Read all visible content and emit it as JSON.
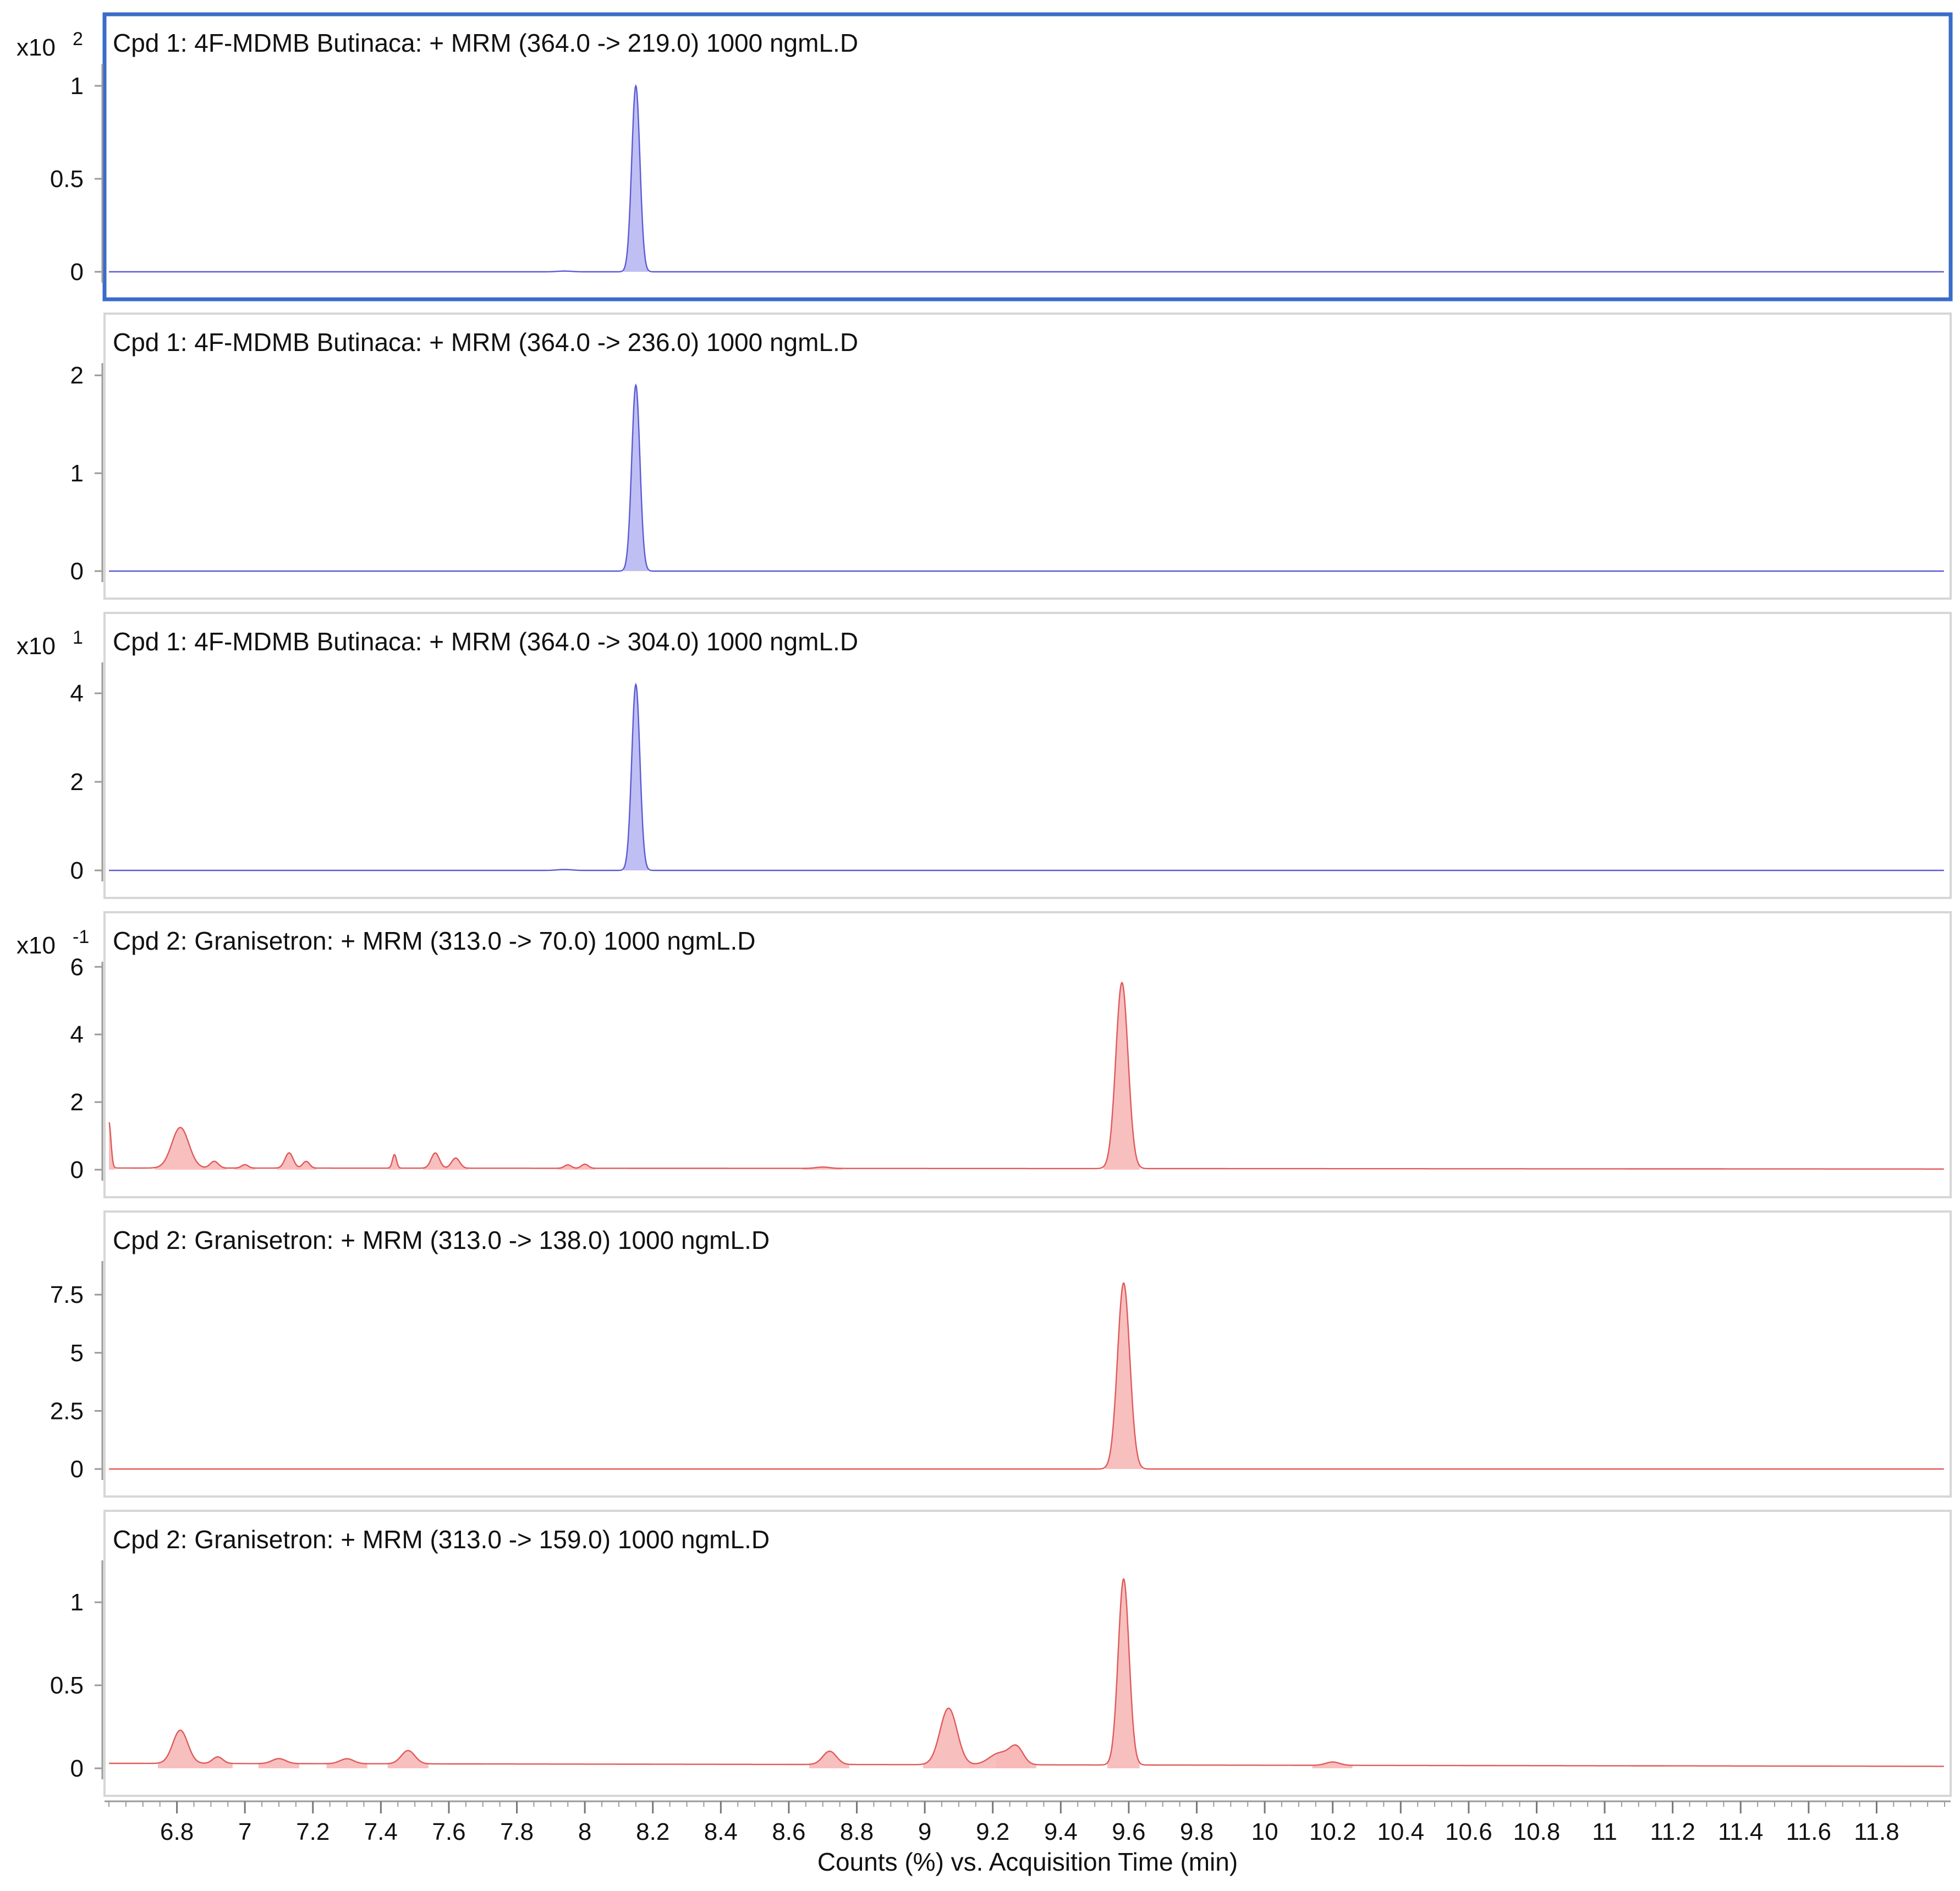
{
  "chart_data": [
    {
      "type": "area",
      "panel": 1,
      "title": "Cpd 1: 4F-MDMB Butinaca: + MRM (364.0 -> 219.0) 1000 ngmL.D",
      "multiplier": {
        "base": "x10",
        "exp": "2"
      },
      "yticks": [
        0,
        0.5,
        1
      ],
      "ytick_labels": [
        "0",
        "0.5",
        "1"
      ],
      "ylim": [
        0,
        1.0
      ],
      "color": "#5b5bd6",
      "fill": "#b8b8f2",
      "baseline": 0.0,
      "selected": true,
      "peaks": [
        {
          "x": 8.15,
          "h": 1.0,
          "w": 0.012
        },
        {
          "x": 7.94,
          "h": 0.004,
          "w": 0.02
        }
      ]
    },
    {
      "type": "area",
      "panel": 2,
      "title": "Cpd 1: 4F-MDMB Butinaca: + MRM (364.0 -> 236.0) 1000 ngmL.D",
      "multiplier": {
        "base": "",
        "exp": ""
      },
      "yticks": [
        0,
        1,
        2
      ],
      "ytick_labels": [
        "0",
        "1",
        "2"
      ],
      "ylim": [
        0,
        1.9
      ],
      "color": "#5b5bd6",
      "fill": "#b8b8f2",
      "baseline": 0.0,
      "selected": false,
      "peaks": [
        {
          "x": 8.15,
          "h": 1.9,
          "w": 0.012
        }
      ]
    },
    {
      "type": "area",
      "panel": 3,
      "title": "Cpd 1: 4F-MDMB Butinaca: + MRM (364.0 -> 304.0) 1000 ngmL.D",
      "multiplier": {
        "base": "x10",
        "exp": "1"
      },
      "yticks": [
        0,
        2,
        4
      ],
      "ytick_labels": [
        "0",
        "2",
        "4"
      ],
      "ylim": [
        0,
        4.2
      ],
      "color": "#5b5bd6",
      "fill": "#b8b8f2",
      "baseline": 0.0,
      "selected": false,
      "peaks": [
        {
          "x": 8.15,
          "h": 4.2,
          "w": 0.012
        },
        {
          "x": 7.94,
          "h": 0.02,
          "w": 0.02
        }
      ]
    },
    {
      "type": "area",
      "panel": 4,
      "title": "Cpd 2: Granisetron: + MRM (313.0 -> 70.0) 1000 ngmL.D",
      "multiplier": {
        "base": "x10",
        "exp": "-1"
      },
      "yticks": [
        0,
        2,
        4,
        6
      ],
      "ytick_labels": [
        "0",
        "2",
        "4",
        "6"
      ],
      "ylim": [
        0,
        5.5
      ],
      "color": "#e05a5a",
      "fill": "#f7b8b8",
      "baseline": 0.05,
      "selected": false,
      "peaks": [
        {
          "x": 6.6,
          "h": 1.35,
          "w": 0.006
        },
        {
          "x": 6.81,
          "h": 1.2,
          "w": 0.025
        },
        {
          "x": 6.91,
          "h": 0.2,
          "w": 0.012
        },
        {
          "x": 7.0,
          "h": 0.1,
          "w": 0.01
        },
        {
          "x": 7.13,
          "h": 0.45,
          "w": 0.012
        },
        {
          "x": 7.18,
          "h": 0.2,
          "w": 0.01
        },
        {
          "x": 7.44,
          "h": 0.4,
          "w": 0.006
        },
        {
          "x": 7.56,
          "h": 0.45,
          "w": 0.012
        },
        {
          "x": 7.62,
          "h": 0.3,
          "w": 0.012
        },
        {
          "x": 7.95,
          "h": 0.1,
          "w": 0.01
        },
        {
          "x": 8.0,
          "h": 0.12,
          "w": 0.01
        },
        {
          "x": 8.7,
          "h": 0.04,
          "w": 0.02
        },
        {
          "x": 9.58,
          "h": 5.5,
          "w": 0.018
        }
      ]
    },
    {
      "type": "area",
      "panel": 5,
      "title": "Cpd 2: Granisetron: + MRM (313.0 -> 138.0) 1000 ngmL.D",
      "multiplier": {
        "base": "",
        "exp": ""
      },
      "yticks": [
        0,
        2.5,
        5,
        7.5
      ],
      "ytick_labels": [
        "0",
        "2.5",
        "5",
        "7.5"
      ],
      "ylim": [
        0,
        8.0
      ],
      "color": "#e05a5a",
      "fill": "#f7b8b8",
      "baseline": 0.0,
      "selected": false,
      "peaks": [
        {
          "x": 9.585,
          "h": 8.0,
          "w": 0.018
        }
      ]
    },
    {
      "type": "area",
      "panel": 6,
      "title": "Cpd 2: Granisetron: + MRM (313.0 -> 159.0) 1000 ngmL.D",
      "multiplier": {
        "base": "",
        "exp": ""
      },
      "yticks": [
        0,
        0.5,
        1
      ],
      "ytick_labels": [
        "0",
        "0.5",
        "1"
      ],
      "ylim": [
        0,
        1.12
      ],
      "color": "#e05a5a",
      "fill": "#f7b8b8",
      "baseline": 0.03,
      "selected": false,
      "peaks": [
        {
          "x": 6.81,
          "h": 0.2,
          "w": 0.022
        },
        {
          "x": 6.92,
          "h": 0.04,
          "w": 0.015
        },
        {
          "x": 7.1,
          "h": 0.03,
          "w": 0.02
        },
        {
          "x": 7.3,
          "h": 0.03,
          "w": 0.02
        },
        {
          "x": 7.48,
          "h": 0.08,
          "w": 0.02
        },
        {
          "x": 8.72,
          "h": 0.08,
          "w": 0.02
        },
        {
          "x": 9.07,
          "h": 0.34,
          "w": 0.025
        },
        {
          "x": 9.22,
          "h": 0.07,
          "w": 0.03
        },
        {
          "x": 9.27,
          "h": 0.1,
          "w": 0.02
        },
        {
          "x": 9.585,
          "h": 1.12,
          "w": 0.016
        },
        {
          "x": 10.2,
          "h": 0.02,
          "w": 0.02
        }
      ]
    }
  ],
  "x_axis": {
    "xlim": [
      6.6,
      12.0
    ],
    "ticks": [
      6.8,
      7,
      7.2,
      7.4,
      7.6,
      7.8,
      8,
      8.2,
      8.4,
      8.6,
      8.8,
      9,
      9.2,
      9.4,
      9.6,
      9.8,
      10,
      10.2,
      10.4,
      10.6,
      10.8,
      11,
      11.2,
      11.4,
      11.6,
      11.8
    ],
    "tick_labels": [
      "6.8",
      "7",
      "7.2",
      "7.4",
      "7.6",
      "7.8",
      "8",
      "8.2",
      "8.4",
      "8.6",
      "8.8",
      "9",
      "9.2",
      "9.4",
      "9.6",
      "9.8",
      "10",
      "10.2",
      "10.4",
      "10.6",
      "10.8",
      "11",
      "11.2",
      "11.4",
      "11.6",
      "11.8"
    ],
    "label": "Counts (%) vs. Acquisition Time (min)"
  }
}
